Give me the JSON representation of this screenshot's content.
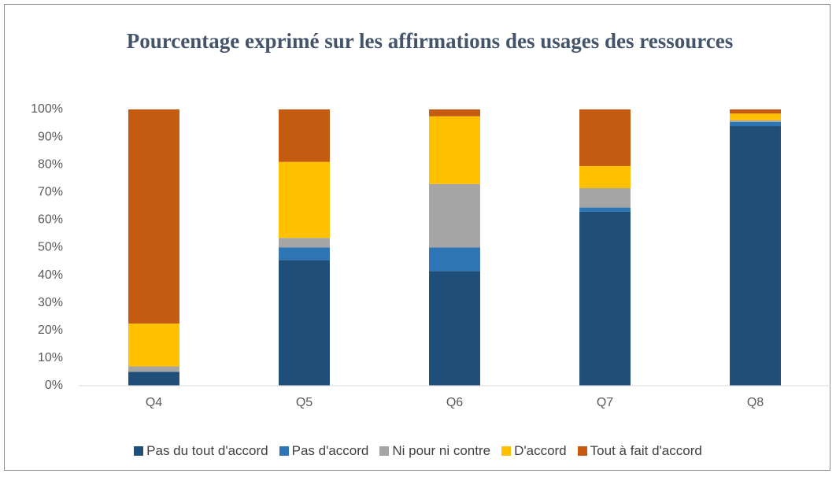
{
  "chart_data": {
    "type": "stacked_bar",
    "title": "Pourcentage exprimé sur les affirmations des usages des ressources",
    "categories": [
      "Q4",
      "Q5",
      "Q6",
      "Q7",
      "Q8"
    ],
    "series": [
      {
        "name": "Pas du tout d'accord",
        "color": "#1f4e79",
        "values": [
          5,
          45.5,
          41.5,
          63,
          94
        ]
      },
      {
        "name": "Pas d'accord",
        "color": "#2e75b6",
        "values": [
          0,
          4.5,
          8.5,
          1.5,
          1.5
        ]
      },
      {
        "name": "Ni pour ni contre",
        "color": "#a5a5a5",
        "values": [
          2,
          3.5,
          23,
          7,
          0.5
        ]
      },
      {
        "name": "D'accord",
        "color": "#ffc000",
        "values": [
          15.5,
          27.5,
          24.5,
          8,
          2.5
        ]
      },
      {
        "name": "Tout à fait d'accord",
        "color": "#c55a11",
        "values": [
          77.5,
          19,
          2.5,
          20.5,
          1.5
        ]
      }
    ],
    "ylim": [
      0,
      100
    ],
    "yticks": [
      {
        "value": 0,
        "label": "0%"
      },
      {
        "value": 10,
        "label": "10%"
      },
      {
        "value": 20,
        "label": "20%"
      },
      {
        "value": 30,
        "label": "30%"
      },
      {
        "value": 40,
        "label": "40%"
      },
      {
        "value": 50,
        "label": "50%"
      },
      {
        "value": 60,
        "label": "60%"
      },
      {
        "value": 70,
        "label": "70%"
      },
      {
        "value": 80,
        "label": "80%"
      },
      {
        "value": 90,
        "label": "90%"
      },
      {
        "value": 100,
        "label": "100%"
      }
    ],
    "legend": "bottom"
  }
}
